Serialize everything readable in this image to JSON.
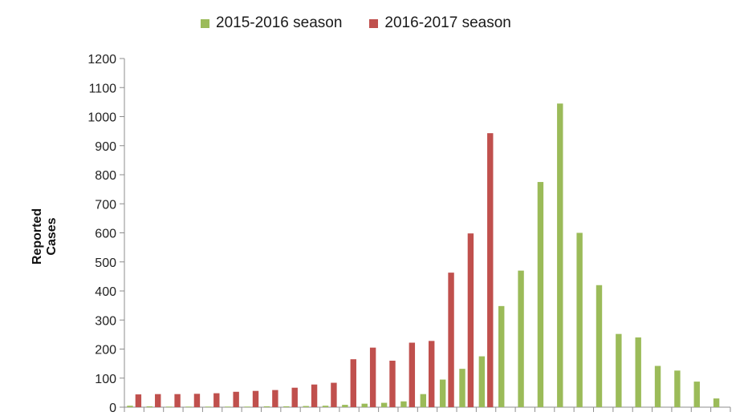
{
  "chart_data": {
    "type": "bar",
    "title": "",
    "xlabel": "",
    "ylabel": "Reported Cases",
    "ylim": [
      0,
      1200
    ],
    "yticks": [
      0,
      100,
      200,
      300,
      400,
      500,
      600,
      700,
      800,
      900,
      1000,
      1100,
      1200
    ],
    "legend_position": "top",
    "grid": false,
    "series": [
      {
        "name": "2015-2016 season",
        "color": "#9bbb59",
        "values": [
          5,
          3,
          2,
          2,
          2,
          2,
          2,
          3,
          3,
          4,
          5,
          8,
          12,
          15,
          20,
          45,
          95,
          132,
          175,
          348,
          470,
          775,
          1045,
          600,
          420,
          252,
          240,
          142,
          126,
          88,
          30
        ]
      },
      {
        "name": "2016-2017 season",
        "color": "#c0504d",
        "values": [
          44,
          45,
          45,
          46,
          48,
          53,
          56,
          59,
          67,
          78,
          84,
          165,
          205,
          160,
          222,
          228,
          463,
          598,
          943,
          null,
          null,
          null,
          null,
          null,
          null,
          null,
          null,
          null,
          null,
          null,
          null
        ]
      }
    ]
  }
}
